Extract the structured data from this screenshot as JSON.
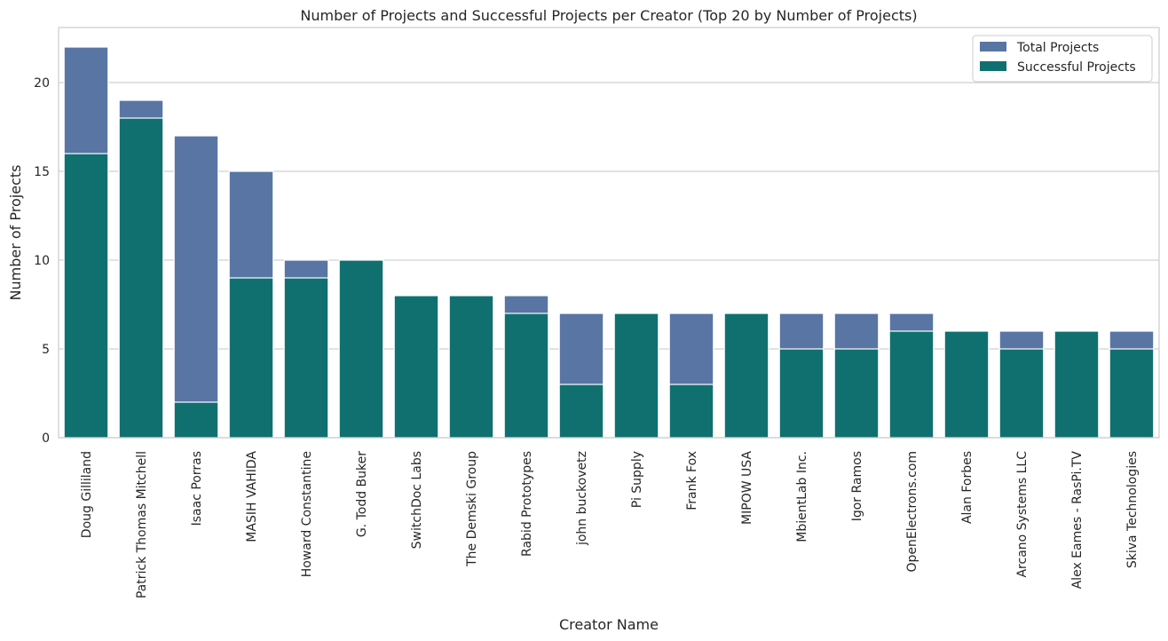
{
  "chart_data": {
    "type": "bar",
    "title": "Number of Projects and Successful Projects per Creator (Top 20 by Number of Projects)",
    "xlabel": "Creator Name",
    "ylabel": "Number of Projects",
    "ylim": [
      0,
      23.1
    ],
    "yticks": [
      "0",
      "5",
      "10",
      "15",
      "20"
    ],
    "categories": [
      "Doug Gilliland",
      "Patrick Thomas Mitchell",
      "Isaac Porras",
      "MASIH VAHIDA",
      "Howard Constantine",
      "G. Todd Buker",
      "SwitchDoc Labs",
      "The Demski Group",
      "Rabid Prototypes",
      "john buckovetz",
      "Pi Supply",
      "Frank Fox",
      "MIPOW USA",
      "MbientLab Inc.",
      "Igor Ramos",
      "OpenElectrons.com",
      "Alan Forbes",
      "Arcano Systems LLC",
      "Alex Eames - RasPi.TV",
      "Skiva Technologies"
    ],
    "series": [
      {
        "name": "Total Projects",
        "color": "#5975a4",
        "values": [
          22,
          19,
          17,
          15,
          10,
          10,
          8,
          8,
          8,
          7,
          7,
          7,
          7,
          7,
          7,
          7,
          6,
          6,
          6,
          6
        ]
      },
      {
        "name": "Successful Projects",
        "color": "#107070",
        "values": [
          16,
          18,
          2,
          9,
          9,
          10,
          8,
          8,
          7,
          3,
          7,
          3,
          7,
          5,
          5,
          6,
          6,
          5,
          6,
          5
        ]
      }
    ],
    "grid": "horizontal",
    "legend_position": "top-right",
    "bar_mode": "overlay"
  }
}
